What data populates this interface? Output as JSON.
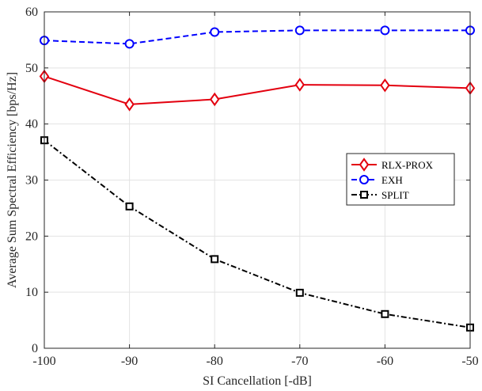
{
  "chart_data": {
    "type": "line",
    "xlabel": "SI Cancellation [-dB]",
    "ylabel": "Average Sum Spectral Efficiency [bps/Hz]",
    "x": [
      -100,
      -90,
      -80,
      -70,
      -60,
      -50
    ],
    "xlim": [
      -100,
      -50
    ],
    "ylim": [
      0,
      60
    ],
    "xticks": [
      -100,
      -90,
      -80,
      -70,
      -60,
      -50
    ],
    "yticks": [
      0,
      10,
      20,
      30,
      40,
      50,
      60
    ],
    "grid": true,
    "legend_position": "middle-right",
    "series": [
      {
        "name": "RLX-PROX",
        "values": [
          48.5,
          43.5,
          44.4,
          47.0,
          46.9,
          46.4
        ],
        "color": "#e3000f",
        "line_style": "solid",
        "marker": "diamond"
      },
      {
        "name": "EXH",
        "values": [
          54.9,
          54.3,
          56.4,
          56.7,
          56.7,
          56.7
        ],
        "color": "#0000ff",
        "line_style": "dashed",
        "marker": "circle"
      },
      {
        "name": "SPLIT",
        "values": [
          37.1,
          25.3,
          15.9,
          9.9,
          6.1,
          3.7
        ],
        "color": "#000000",
        "line_style": "dashdot",
        "marker": "square"
      }
    ]
  }
}
